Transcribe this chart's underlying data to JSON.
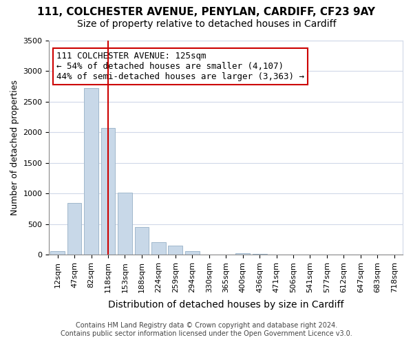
{
  "title": "111, COLCHESTER AVENUE, PENYLAN, CARDIFF, CF23 9AY",
  "subtitle": "Size of property relative to detached houses in Cardiff",
  "xlabel": "Distribution of detached houses by size in Cardiff",
  "ylabel": "Number of detached properties",
  "bar_labels": [
    "12sqm",
    "47sqm",
    "82sqm",
    "118sqm",
    "153sqm",
    "188sqm",
    "224sqm",
    "259sqm",
    "294sqm",
    "330sqm",
    "365sqm",
    "400sqm",
    "436sqm",
    "471sqm",
    "506sqm",
    "541sqm",
    "577sqm",
    "612sqm",
    "647sqm",
    "683sqm",
    "718sqm"
  ],
  "bar_values": [
    55,
    850,
    2720,
    2070,
    1010,
    450,
    205,
    145,
    60,
    0,
    0,
    25,
    10,
    0,
    0,
    0,
    0,
    0,
    0,
    0,
    0
  ],
  "bar_color": "#c8d8e8",
  "bar_edgecolor": "#a0b8cc",
  "vline_x": 3,
  "vline_color": "#cc0000",
  "annotation_box_text": "111 COLCHESTER AVENUE: 125sqm\n← 54% of detached houses are smaller (4,107)\n44% of semi-detached houses are larger (3,363) →",
  "annotation_box_edgecolor": "#cc0000",
  "annotation_box_facecolor": "#ffffff",
  "ylim": [
    0,
    3500
  ],
  "yticks": [
    0,
    500,
    1000,
    1500,
    2000,
    2500,
    3000,
    3500
  ],
  "grid_color": "#d0d8e8",
  "footer_line1": "Contains HM Land Registry data © Crown copyright and database right 2024.",
  "footer_line2": "Contains public sector information licensed under the Open Government Licence v3.0.",
  "title_fontsize": 11,
  "subtitle_fontsize": 10,
  "axis_label_fontsize": 9,
  "tick_fontsize": 8,
  "annotation_fontsize": 9,
  "footer_fontsize": 7
}
